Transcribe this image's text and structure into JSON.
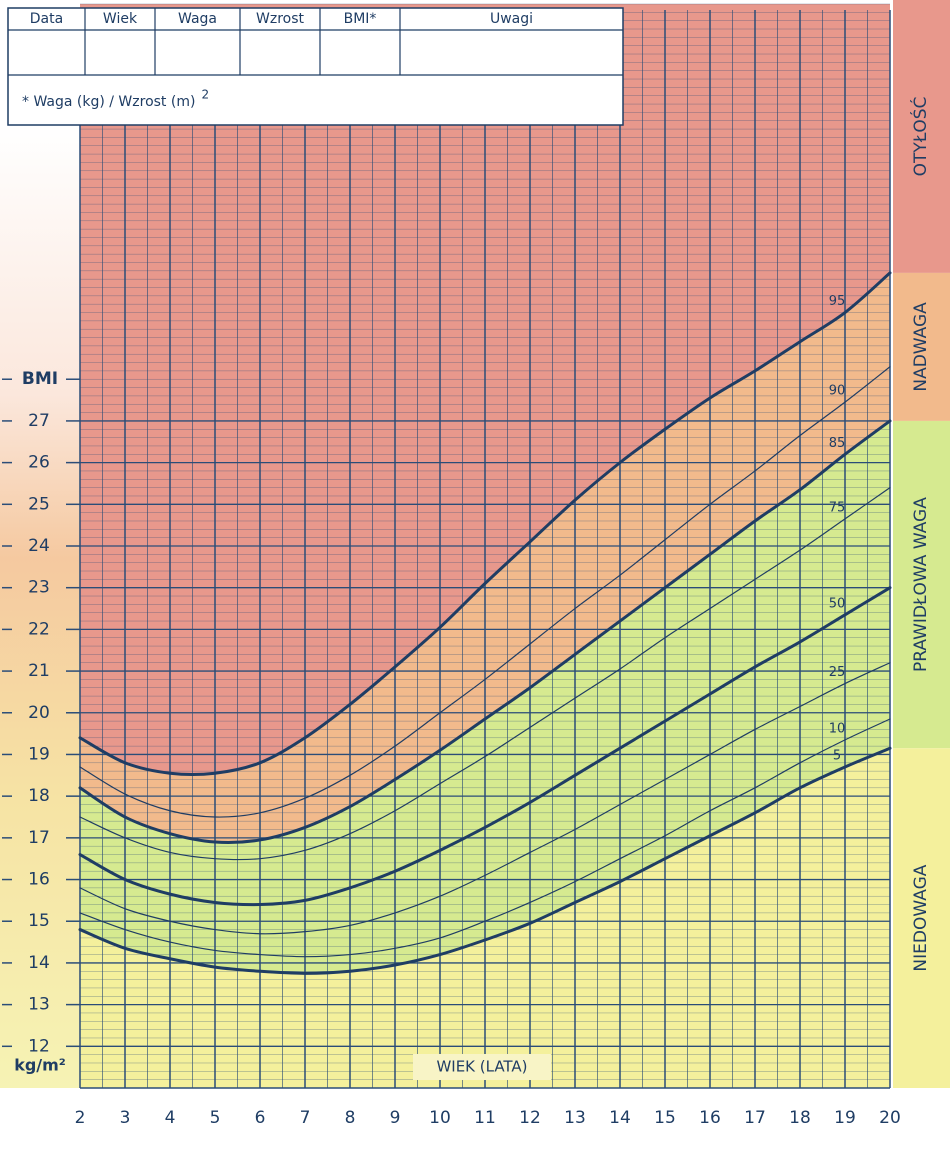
{
  "table": {
    "headers": [
      "Data",
      "Wiek",
      "Waga",
      "Wzrost",
      "BMI*",
      "Uwagi"
    ],
    "note": "* Waga (kg) / Wzrost (m)",
    "note_superscript": "2"
  },
  "chart_data": {
    "type": "line",
    "x_label": "WIEK (LATA)",
    "y_label": "BMI",
    "y_unit": "kg/m²",
    "x": [
      2,
      3,
      4,
      5,
      6,
      7,
      8,
      9,
      10,
      11,
      12,
      13,
      14,
      15,
      16,
      17,
      18,
      19,
      20
    ],
    "xlim": [
      2,
      20
    ],
    "xticks": [
      2,
      3,
      4,
      5,
      6,
      7,
      8,
      9,
      10,
      11,
      12,
      13,
      14,
      15,
      16,
      17,
      18,
      19,
      20
    ],
    "ylim": [
      11,
      37
    ],
    "yticks": [
      12,
      13,
      14,
      15,
      16,
      17,
      18,
      19,
      20,
      21,
      22,
      23,
      24,
      25,
      26,
      27
    ],
    "grid": true,
    "series": [
      {
        "name": "95",
        "color": "#1f3d64",
        "line_style": "thick",
        "values": [
          19.4,
          18.8,
          18.55,
          18.55,
          18.8,
          19.4,
          20.2,
          21.1,
          22.05,
          23.1,
          24.1,
          25.1,
          26.0,
          26.8,
          27.55,
          28.2,
          28.9,
          29.6,
          30.55
        ]
      },
      {
        "name": "90",
        "color": "#1f3d64",
        "line_style": "thin",
        "values": [
          18.7,
          18.05,
          17.65,
          17.5,
          17.6,
          17.95,
          18.5,
          19.2,
          20.0,
          20.8,
          21.65,
          22.5,
          23.3,
          24.15,
          25.0,
          25.8,
          26.65,
          27.45,
          28.3
        ]
      },
      {
        "name": "85",
        "color": "#1f3d64",
        "line_style": "thick",
        "values": [
          18.2,
          17.5,
          17.1,
          16.9,
          16.95,
          17.25,
          17.75,
          18.4,
          19.1,
          19.85,
          20.6,
          21.4,
          22.2,
          23.0,
          23.8,
          24.6,
          25.35,
          26.2,
          27.0
        ]
      },
      {
        "name": "75",
        "color": "#1f3d64",
        "line_style": "thin",
        "values": [
          17.5,
          17.0,
          16.65,
          16.5,
          16.5,
          16.7,
          17.1,
          17.65,
          18.3,
          18.95,
          19.65,
          20.35,
          21.05,
          21.8,
          22.5,
          23.2,
          23.9,
          24.65,
          25.4
        ]
      },
      {
        "name": "50",
        "color": "#1f3d64",
        "line_style": "thick",
        "values": [
          16.6,
          16.0,
          15.65,
          15.45,
          15.4,
          15.5,
          15.8,
          16.2,
          16.7,
          17.25,
          17.85,
          18.5,
          19.15,
          19.8,
          20.45,
          21.1,
          21.7,
          22.35,
          23.0
        ]
      },
      {
        "name": "25",
        "color": "#1f3d64",
        "line_style": "thin",
        "values": [
          15.8,
          15.3,
          15.0,
          14.8,
          14.7,
          14.75,
          14.9,
          15.2,
          15.6,
          16.1,
          16.65,
          17.2,
          17.8,
          18.4,
          19.0,
          19.6,
          20.15,
          20.7,
          21.2
        ]
      },
      {
        "name": "10",
        "color": "#1f3d64",
        "line_style": "thin",
        "values": [
          15.2,
          14.8,
          14.5,
          14.3,
          14.2,
          14.15,
          14.2,
          14.35,
          14.6,
          15.0,
          15.45,
          15.95,
          16.5,
          17.05,
          17.65,
          18.2,
          18.8,
          19.35,
          19.85
        ]
      },
      {
        "name": "5",
        "color": "#1f3d64",
        "line_style": "thick",
        "values": [
          14.8,
          14.35,
          14.1,
          13.9,
          13.8,
          13.75,
          13.8,
          13.95,
          14.2,
          14.55,
          14.95,
          15.45,
          15.95,
          16.5,
          17.05,
          17.6,
          18.2,
          18.7,
          19.15
        ]
      }
    ],
    "zones": [
      {
        "label": "OTYŁOŚĆ",
        "color": "#e8988c",
        "above": "95"
      },
      {
        "label": "NADWAGA",
        "color": "#f2ba8c",
        "between": [
          "85",
          "95"
        ]
      },
      {
        "label": "PRAWIDŁOWA WAGA",
        "color": "#d6ea90",
        "between": [
          "5",
          "85"
        ]
      },
      {
        "label": "NIEDOWAGA",
        "color": "#f4f09c",
        "below": "5"
      }
    ]
  }
}
